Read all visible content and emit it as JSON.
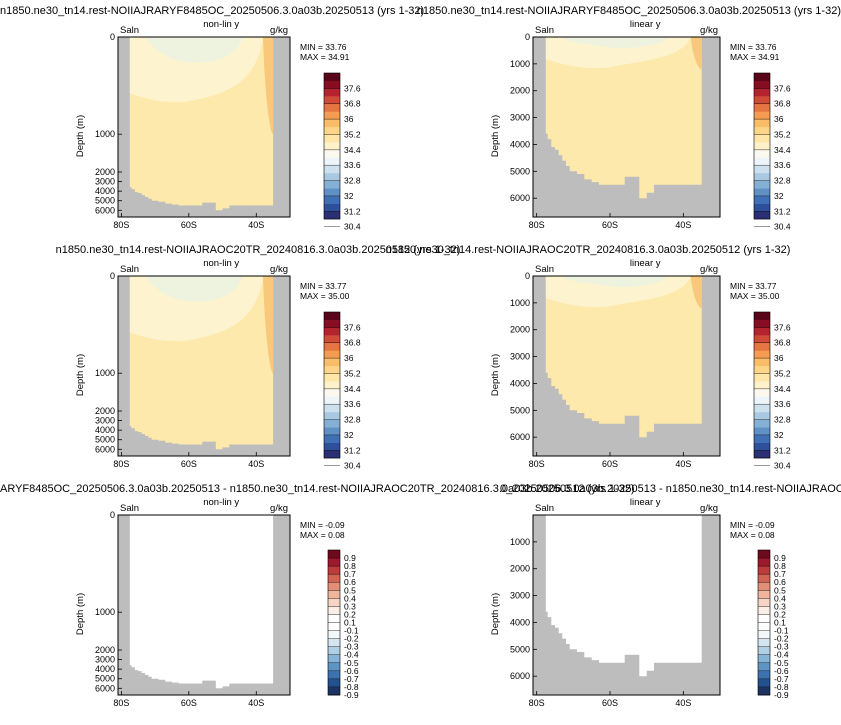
{
  "colors": {
    "mask": "#bdbdbd",
    "salt_palette": [
      "#2b2f73",
      "#2e4f9a",
      "#3f6fb5",
      "#5f90c6",
      "#85b0d6",
      "#a9c9e2",
      "#cde0ed",
      "#eef5fa",
      "#fbf8ef",
      "#fdf1cb",
      "#fde6a7",
      "#fcd58a",
      "#f9bd6a",
      "#f39c52",
      "#e57542",
      "#d04a38",
      "#b3242e",
      "#870d23",
      "#5a0419"
    ],
    "diff_palette": [
      "#1d3463",
      "#23508f",
      "#3c72b0",
      "#5e93c6",
      "#86b3d8",
      "#b0cee4",
      "#d5e5f0",
      "#f2f7fa",
      "#ffffff",
      "#ffffff",
      "#fbeee6",
      "#f6d5c4",
      "#efb59d",
      "#e38e76",
      "#d26453",
      "#bb3c3b",
      "#9c1a2c",
      "#6e0a1e"
    ]
  },
  "chart_data": [
    {
      "type": "heatmap",
      "title": "n1850.ne30_tn14.rest-NOIIAJRARYF8485OC_20250506.3.0a03b.20250513 (yrs 1-32)",
      "left_label": "Saln",
      "center_label": "non-lin y",
      "right_label": "g/kg",
      "ylabel": "Depth (m)",
      "x_ticks": [
        "80S",
        "60S",
        "40S"
      ],
      "y_ticks": [
        "0",
        "1000",
        "2000",
        "3000",
        "4000",
        "5000",
        "6000"
      ],
      "xlim": [
        "81S",
        "30S"
      ],
      "ylim": [
        6700,
        0
      ],
      "y_scale": "non-linear",
      "min_label": "MIN =  33.76",
      "max_label": "MAX =  34.91",
      "colorbar_ticks": [
        "37.6",
        "36.8",
        "36",
        "35.2",
        "34.4",
        "33.6",
        "32.8",
        "32",
        "31.2",
        "30.4"
      ]
    },
    {
      "type": "heatmap",
      "title": "n1850.ne30_tn14.rest-NOIIAJRARYF8485OC_20250506.3.0a03b.20250513 (yrs 1-32)",
      "left_label": "Saln",
      "center_label": "linear y",
      "right_label": "g/kg",
      "ylabel": "Depth (m)",
      "x_ticks": [
        "80S",
        "60S",
        "40S"
      ],
      "y_ticks": [
        "0",
        "1000",
        "2000",
        "3000",
        "4000",
        "5000",
        "6000"
      ],
      "xlim": [
        "81S",
        "30S"
      ],
      "ylim": [
        6700,
        0
      ],
      "y_scale": "linear",
      "min_label": "MIN =  33.76",
      "max_label": "MAX =  34.91",
      "colorbar_ticks": [
        "37.6",
        "36.8",
        "36",
        "35.2",
        "34.4",
        "33.6",
        "32.8",
        "32",
        "31.2",
        "30.4"
      ]
    },
    {
      "type": "heatmap",
      "title": "n1850.ne30_tn14.rest-NOIIAJRAOC20TR_20240816.3.0a03b.20250512 (yrs 1-32)",
      "left_label": "Saln",
      "center_label": "non-lin y",
      "right_label": "g/kg",
      "ylabel": "Depth (m)",
      "x_ticks": [
        "80S",
        "60S",
        "40S"
      ],
      "y_ticks": [
        "0",
        "1000",
        "2000",
        "3000",
        "4000",
        "5000",
        "6000"
      ],
      "xlim": [
        "81S",
        "30S"
      ],
      "ylim": [
        6700,
        0
      ],
      "y_scale": "non-linear",
      "min_label": "MIN =  33.77",
      "max_label": "MAX =  35.00",
      "colorbar_ticks": [
        "37.6",
        "36.8",
        "36",
        "35.2",
        "34.4",
        "33.6",
        "32.8",
        "32",
        "31.2",
        "30.4"
      ]
    },
    {
      "type": "heatmap",
      "title": "n1850.ne30_tn14.rest-NOIIAJRAOC20TR_20240816.3.0a03b.20250512 (yrs 1-32)",
      "left_label": "Saln",
      "center_label": "linear y",
      "right_label": "g/kg",
      "ylabel": "Depth (m)",
      "x_ticks": [
        "80S",
        "60S",
        "40S"
      ],
      "y_ticks": [
        "0",
        "1000",
        "2000",
        "3000",
        "4000",
        "5000",
        "6000"
      ],
      "xlim": [
        "81S",
        "30S"
      ],
      "ylim": [
        6700,
        0
      ],
      "y_scale": "linear",
      "min_label": "MIN =  33.77",
      "max_label": "MAX =  35.00",
      "colorbar_ticks": [
        "37.6",
        "36.8",
        "36",
        "35.2",
        "34.4",
        "33.6",
        "32.8",
        "32",
        "31.2",
        "30.4"
      ]
    },
    {
      "type": "heatmap",
      "title": "ARYF8485OC_20250506.3.0a03b.20250513 - n1850.ne30_tn14.rest-NOIIAJRAOC20TR_20240816.3.0a03b.20250512 (yrs 1-32)",
      "left_label": "Saln",
      "center_label": "non-lin y",
      "right_label": "g/kg",
      "ylabel": "Depth (m)",
      "x_ticks": [
        "80S",
        "60S",
        "40S"
      ],
      "y_ticks": [
        "0",
        "1000",
        "2000",
        "3000",
        "4000",
        "5000",
        "6000"
      ],
      "xlim": [
        "81S",
        "30S"
      ],
      "ylim": [
        6700,
        0
      ],
      "y_scale": "non-linear",
      "min_label": "MIN =  -0.09",
      "max_label": "MAX =   0.08",
      "colorbar_ticks": [
        "0.9",
        "0.8",
        "0.7",
        "0.6",
        "0.5",
        "0.4",
        "0.3",
        "0.2",
        "0.1",
        "-0.1",
        "-0.2",
        "-0.3",
        "-0.4",
        "-0.5",
        "-0.6",
        "-0.7",
        "-0.8",
        "-0.9"
      ]
    },
    {
      "type": "heatmap",
      "title": "0_20250506.3.0a03b.20250513 - n1850.ne30_tn14.rest-NOIIAJRAOC20TR_20240816.3.0a03b.20250512 (yrs 1-32)",
      "left_label": "Saln",
      "center_label": "linear y",
      "right_label": "g/kg",
      "ylabel": "Depth (m)",
      "x_ticks": [
        "80S",
        "60S",
        "40S"
      ],
      "y_ticks": [
        "1000",
        "2000",
        "3000",
        "4000",
        "5000",
        "6000"
      ],
      "xlim": [
        "81S",
        "30S"
      ],
      "ylim": [
        6700,
        0
      ],
      "y_scale": "linear",
      "min_label": "MIN =  -0.09",
      "max_label": "MAX =   0.08",
      "colorbar_ticks": [
        "0.9",
        "0.8",
        "0.7",
        "0.6",
        "0.5",
        "0.4",
        "0.3",
        "0.2",
        "0.1",
        "-0.1",
        "-0.2",
        "-0.3",
        "-0.4",
        "-0.5",
        "-0.6",
        "-0.7",
        "-0.8",
        "-0.9"
      ]
    }
  ]
}
